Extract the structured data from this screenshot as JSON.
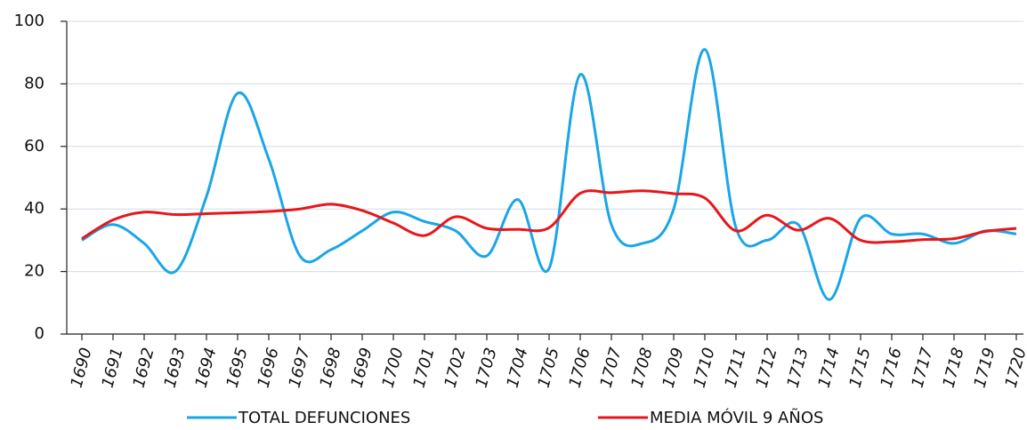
{
  "chart_data": {
    "type": "line",
    "categories": [
      "1690",
      "1691",
      "1692",
      "1693",
      "1694",
      "1695",
      "1696",
      "1697",
      "1698",
      "1699",
      "1700",
      "1701",
      "1702",
      "1703",
      "1704",
      "1705",
      "1706",
      "1707",
      "1708",
      "1709",
      "1710",
      "1711",
      "1712",
      "1713",
      "1714",
      "1715",
      "1716",
      "1717",
      "1718",
      "1719",
      "1720"
    ],
    "series": [
      {
        "name": "TOTAL DEFUNCIONES",
        "color": "#1aa6e6",
        "values": [
          30,
          35,
          29,
          20,
          44,
          77,
          56,
          25,
          27,
          33,
          39,
          36,
          33,
          25,
          43,
          21,
          83,
          35,
          29,
          40,
          91,
          34,
          30,
          35,
          11,
          37,
          32,
          32,
          29,
          33,
          32
        ]
      },
      {
        "name": "MEDIA MÓVIL 9 AÑOS",
        "color": "#e8161b",
        "values": [
          30.5,
          36.5,
          39,
          38.2,
          38.5,
          38.8,
          39.2,
          40,
          41.5,
          39.5,
          35.5,
          31.5,
          37.5,
          33.8,
          33.5,
          34,
          45,
          45.2,
          45.8,
          44.9,
          43.5,
          33,
          38,
          33.2,
          37,
          30,
          29.5,
          30.2,
          30.5,
          32.8,
          33.8
        ]
      }
    ],
    "ylim": [
      0,
      100
    ],
    "yticks": [
      0,
      20,
      40,
      60,
      80,
      100
    ],
    "grid": true,
    "legend": "bottom"
  }
}
